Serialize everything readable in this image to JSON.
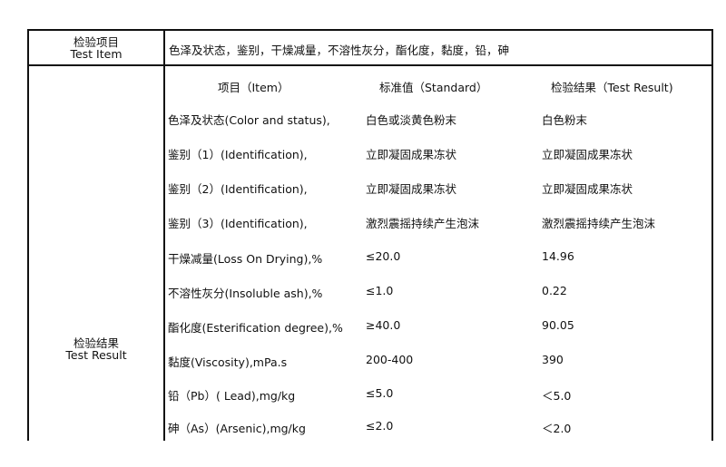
{
  "header_row": {
    "label_cn": "检验项目",
    "label_en": "Test Item",
    "value": "色泽及状态，鉴别，干燥减量，不溶性灰分，酯化度，黏度，铅，砷"
  },
  "result_section": {
    "label_cn": "检验结果",
    "label_en": "Test Result",
    "columns": [
      "项目（Item）",
      "标准值（Standard）",
      "检验结果（Test Result)"
    ],
    "rows": [
      {
        "item": "色泽及状态(Color and status),",
        "standard": "白色或淡黄色粉末",
        "result": "白色粉末"
      },
      {
        "item": "鉴别（1）(Identification),",
        "standard": "立即凝固成果冻状",
        "result": "立即凝固成果冻状"
      },
      {
        "item": "鉴别（2）(Identification),",
        "standard": "立即凝固成果冻状",
        "result": "立即凝固成果冻状"
      },
      {
        "item": "鉴别（3）(Identification),",
        "standard": "激烈震摇持续产生泡沫",
        "result": "激烈震摇持续产生泡沫"
      },
      {
        "item": "干燥减量(Loss On  Drying),%",
        "standard": "≤20.0",
        "result": "14.96"
      },
      {
        "item": "不溶性灰分(Insoluble ash),%",
        "standard": "≤1.0",
        "result": "0.22"
      },
      {
        "item": "酯化度(Esterification degree),%",
        "standard": "≥40.0",
        "result": "90.05"
      },
      {
        "item": "黏度(Viscosity),mPa.s",
        "standard": "200-400",
        "result": "390"
      },
      {
        "item": "铅（Pb）( Lead),mg/kg",
        "standard": "≤5.0",
        "result": "＜5.0"
      },
      {
        "item": "砷（As）(Arsenic),mg/kg",
        "standard": "≤2.0",
        "result": "＜2.0"
      }
    ]
  }
}
